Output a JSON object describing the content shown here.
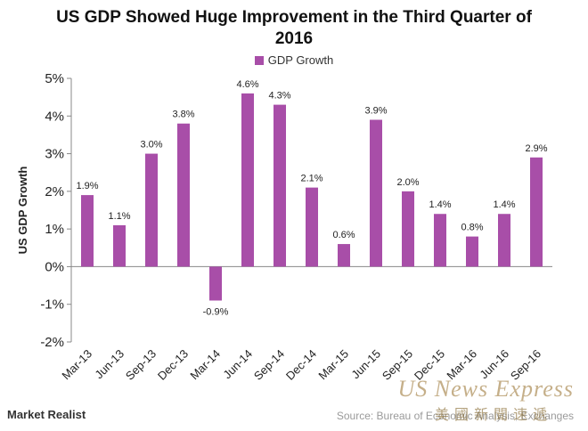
{
  "chart_data": {
    "type": "bar",
    "title": "US GDP Showed Huge Improvement in the Third Quarter of 2016",
    "xlabel": "",
    "ylabel": "US GDP Growth",
    "ylim": [
      -2,
      5
    ],
    "yticks": [
      "5%",
      "4%",
      "3%",
      "2%",
      "1%",
      "0%",
      "-1%",
      "-2%"
    ],
    "categories": [
      "Mar-13",
      "Jun-13",
      "Sep-13",
      "Dec-13",
      "Mar-14",
      "Jun-14",
      "Sep-14",
      "Dec-14",
      "Mar-15",
      "Jun-15",
      "Sep-15",
      "Dec-15",
      "Mar-16",
      "Jun-16",
      "Sep-16"
    ],
    "series": [
      {
        "name": "GDP Growth",
        "values": [
          1.9,
          1.1,
          3.0,
          3.8,
          -0.9,
          4.6,
          4.3,
          2.1,
          0.6,
          3.9,
          2.0,
          1.4,
          0.8,
          1.4,
          2.9
        ],
        "labels": [
          "1.9%",
          "1.1%",
          "3.0%",
          "3.8%",
          "-0.9%",
          "4.6%",
          "4.3%",
          "2.1%",
          "0.6%",
          "3.9%",
          "2.0%",
          "1.4%",
          "0.8%",
          "1.4%",
          "2.9%"
        ]
      }
    ],
    "legend_position": "top",
    "grid": false,
    "bar_color": "#a84ea8"
  },
  "footer": {
    "brand": "Market Realist",
    "source": "Source: Bureau of Economic Analysis, Exchanges"
  },
  "watermark": {
    "text": "US News Express",
    "subtext": "美國新聞速遞"
  }
}
